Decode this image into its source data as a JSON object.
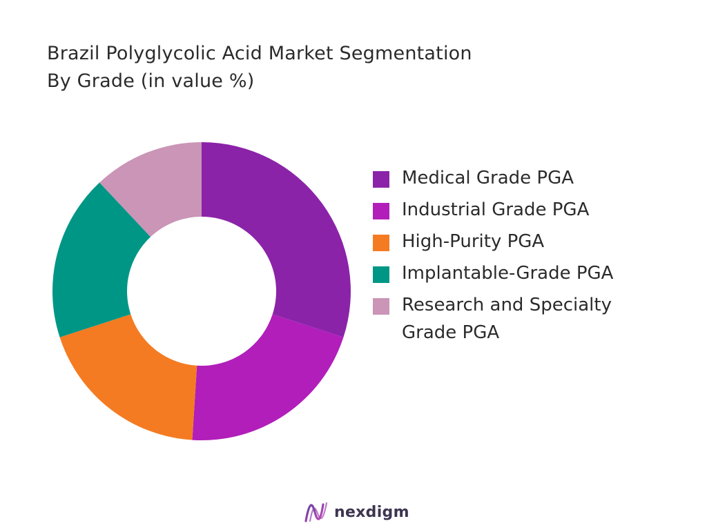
{
  "chart_data": {
    "type": "pie",
    "title_lines": [
      "Brazil Polyglycolic Acid Market Segmentation",
      "By Grade (in value %)"
    ],
    "categories": [
      "Medical Grade PGA",
      "Industrial Grade PGA",
      "High-Purity PGA",
      "Implantable-Grade PGA",
      "Research and Specialty Grade PGA"
    ],
    "values": [
      30,
      21,
      19,
      18,
      12
    ],
    "colors": [
      "#8B23A8",
      "#B11EBA",
      "#F47B22",
      "#009686",
      "#CA95B6"
    ],
    "legend_position": "right",
    "donut": true
  },
  "brand": {
    "name": "nexdigm",
    "logo_icon": "nexdigm-wave-logo"
  }
}
